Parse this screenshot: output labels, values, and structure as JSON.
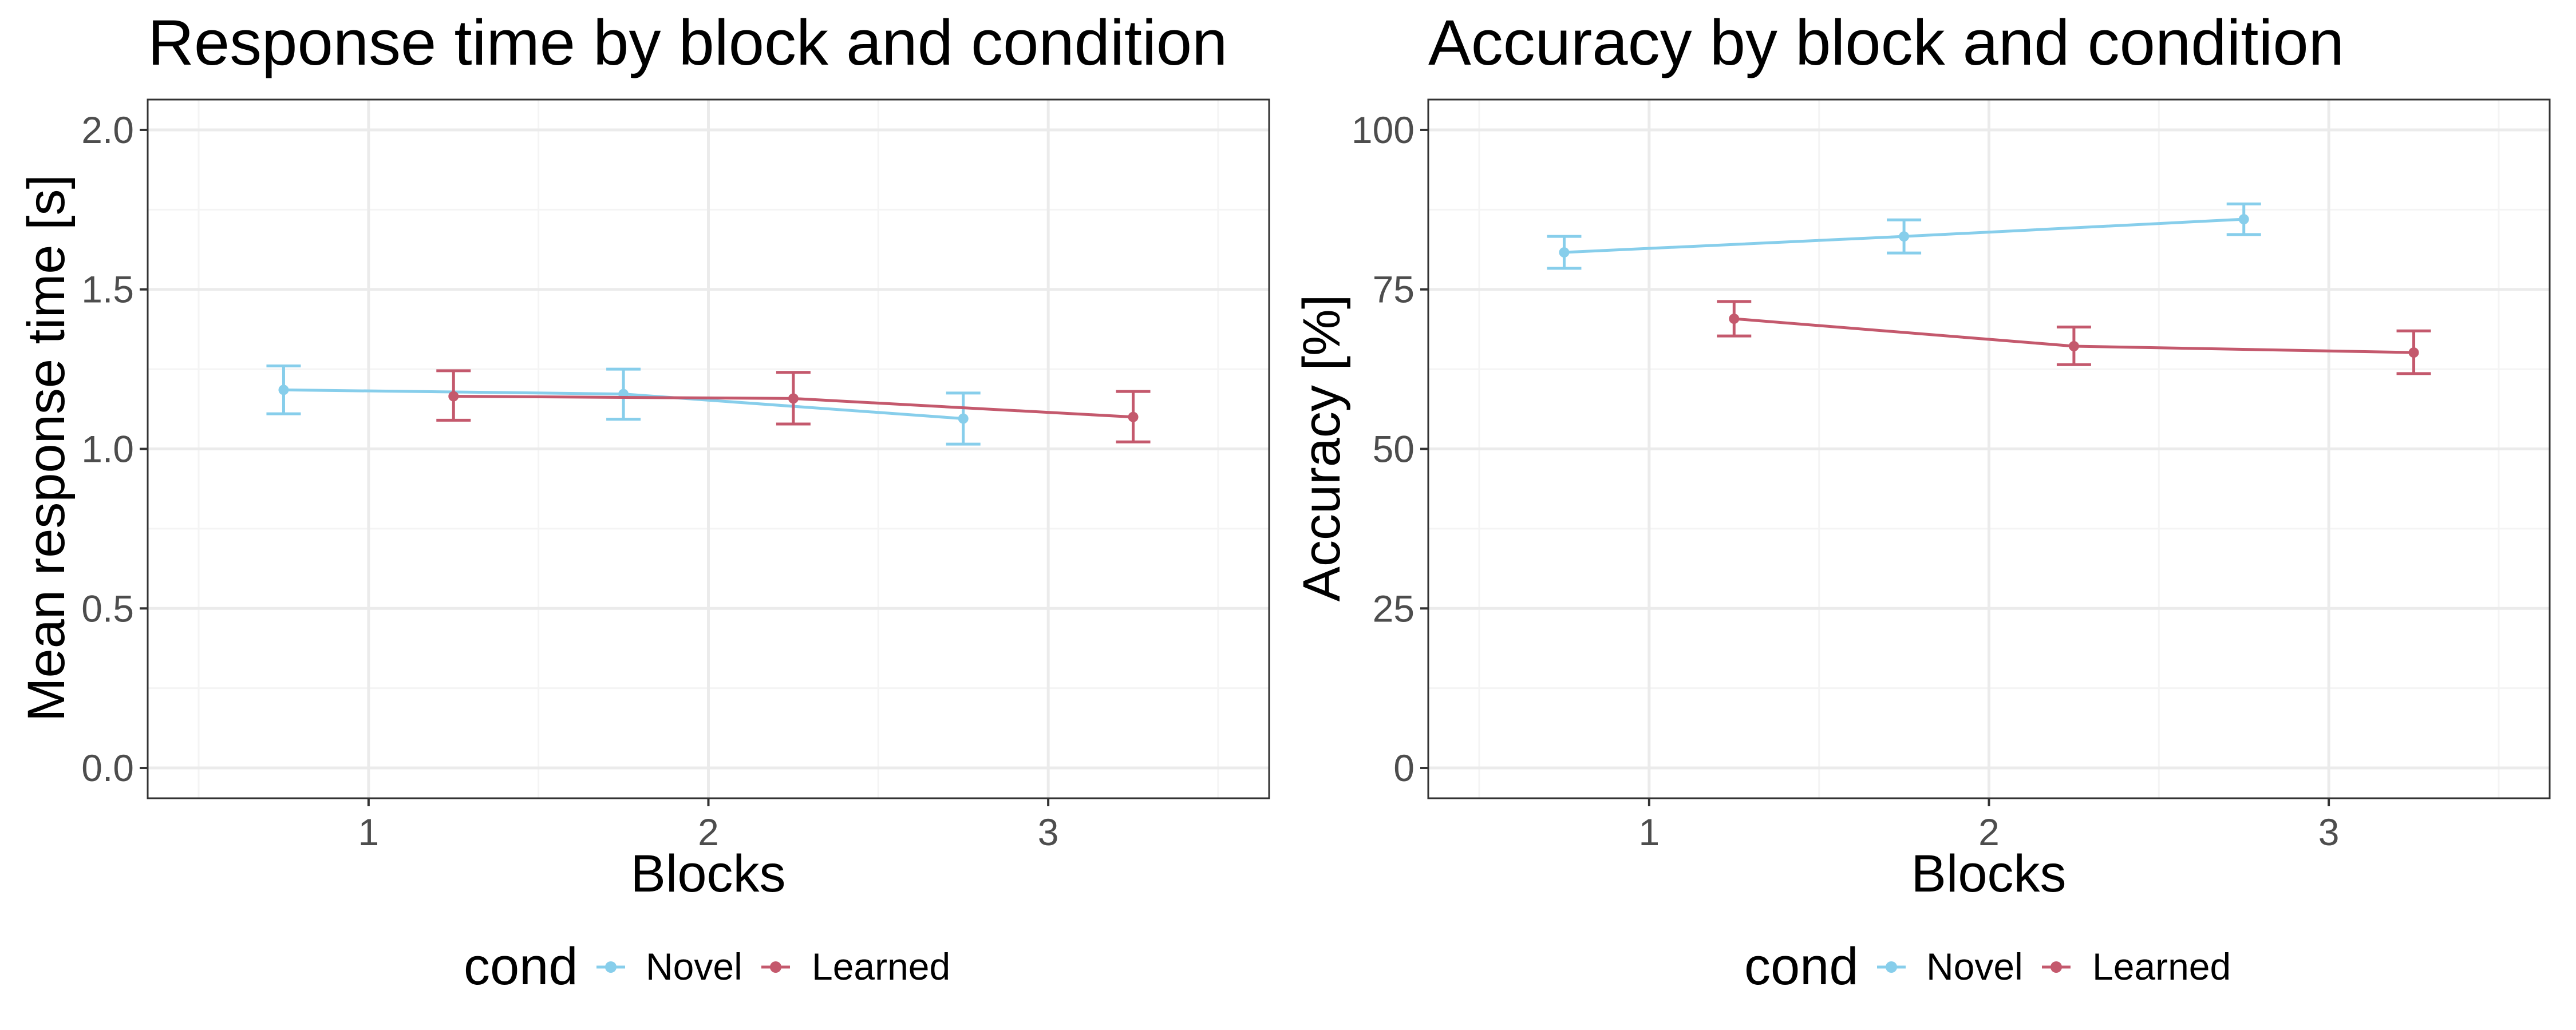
{
  "colors": {
    "novel": "#87CEEB",
    "learned": "#C4596D",
    "panel_border": "#333333",
    "grid_major": "#EBEBEB",
    "grid_minor": "#F4F4F4",
    "tick_text": "#4D4D4D"
  },
  "chart_data": [
    {
      "type": "line",
      "title": "Response time by block and condition",
      "xlabel": "Blocks",
      "ylabel": "Mean response time [s]",
      "xlim": [
        0.35,
        3.65
      ],
      "ylim": [
        -0.095,
        2.095
      ],
      "x_ticks": [
        1,
        2,
        3
      ],
      "x_tick_labels": [
        "1",
        "2",
        "3"
      ],
      "y_ticks": [
        0,
        0.5,
        1.0,
        1.5,
        2.0
      ],
      "y_tick_labels": [
        "0.0",
        "0.5",
        "1.0",
        "1.5",
        "2.0"
      ],
      "grid": true,
      "legend": {
        "title": "cond",
        "position": "bottom"
      },
      "series": [
        {
          "name": "Novel",
          "color": "#87CEEB",
          "x": [
            0.75,
            1.75,
            2.75
          ],
          "y": [
            1.185,
            1.172,
            1.095
          ],
          "ymin": [
            1.11,
            1.093,
            1.015
          ],
          "ymax": [
            1.26,
            1.25,
            1.175
          ]
        },
        {
          "name": "Learned",
          "color": "#C4596D",
          "x": [
            1.25,
            2.25,
            3.25
          ],
          "y": [
            1.165,
            1.158,
            1.1
          ],
          "ymin": [
            1.09,
            1.078,
            1.022
          ],
          "ymax": [
            1.245,
            1.24,
            1.18
          ]
        }
      ]
    },
    {
      "type": "line",
      "title": "Accuracy by block and condition",
      "xlabel": "Blocks",
      "ylabel": "Accuracy [%]",
      "xlim": [
        0.35,
        3.65
      ],
      "ylim": [
        -4.75,
        104.75
      ],
      "x_ticks": [
        1,
        2,
        3
      ],
      "x_tick_labels": [
        "1",
        "2",
        "3"
      ],
      "y_ticks": [
        0,
        25,
        50,
        75,
        100
      ],
      "y_tick_labels": [
        "0",
        "25",
        "50",
        "75",
        "100"
      ],
      "grid": true,
      "legend": {
        "title": "cond",
        "position": "bottom"
      },
      "series": [
        {
          "name": "Novel",
          "color": "#87CEEB",
          "x": [
            0.75,
            1.75,
            2.75
          ],
          "y": [
            80.8,
            83.3,
            86.0
          ],
          "ymin": [
            78.3,
            80.7,
            83.6
          ],
          "ymax": [
            83.3,
            85.9,
            88.4
          ]
        },
        {
          "name": "Learned",
          "color": "#C4596D",
          "x": [
            1.25,
            2.25,
            3.25
          ],
          "y": [
            70.4,
            66.1,
            65.1
          ],
          "ymin": [
            67.7,
            63.2,
            61.8
          ],
          "ymax": [
            73.1,
            69.1,
            68.5
          ]
        }
      ]
    }
  ]
}
